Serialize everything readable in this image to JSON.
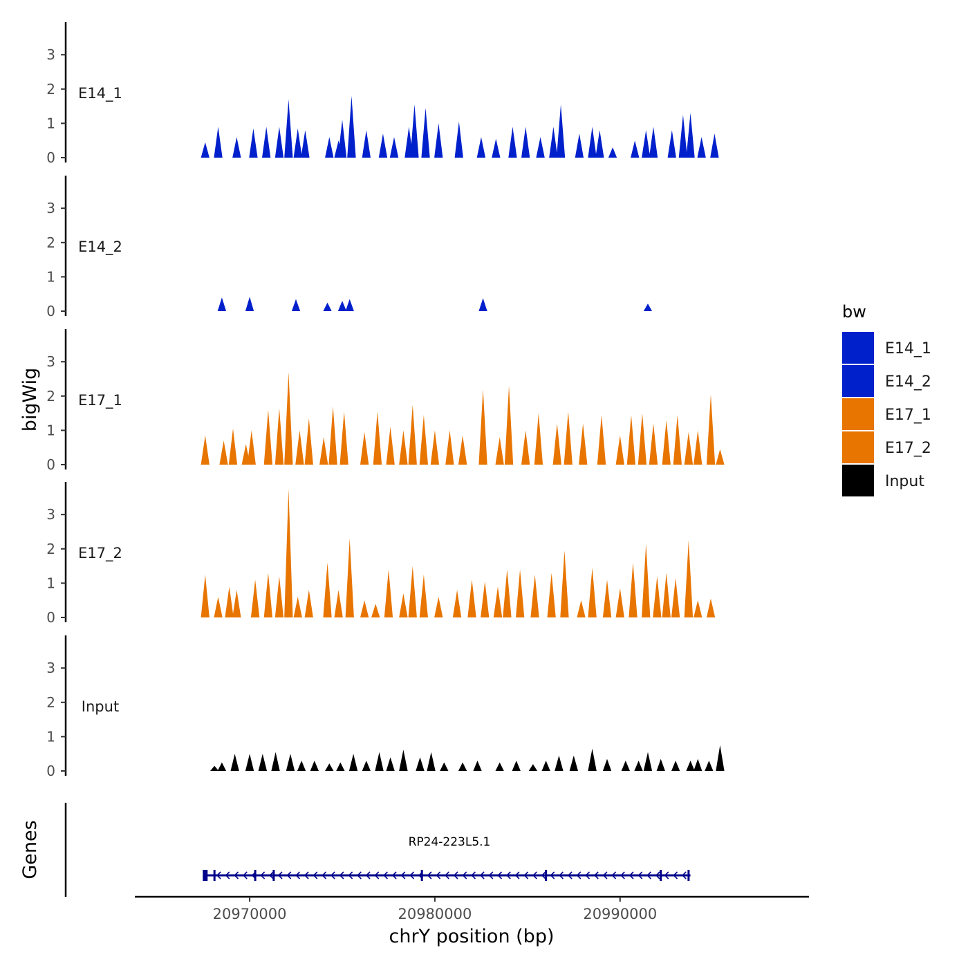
{
  "chart_data": {
    "type": "area",
    "subtype": "genome-browser-coverage-tracks",
    "ylabel": "bigWig",
    "xlabel": "chrY position (bp)",
    "xlim": [
      20963800,
      21000200
    ],
    "x_ticks": [
      20970000,
      20980000,
      20990000
    ],
    "x_tick_labels": [
      "20970000",
      "20980000",
      "20990000"
    ],
    "ylim": [
      0,
      4
    ],
    "y_ticks": [
      0,
      1,
      2,
      3
    ],
    "y_tick_labels": [
      "0",
      "1",
      "2",
      "3"
    ],
    "grid": false,
    "legend": {
      "title": "bw",
      "position": "right",
      "entries": [
        {
          "label": "E14_1",
          "color": "#0020CC"
        },
        {
          "label": "E14_2",
          "color": "#0020CC"
        },
        {
          "label": "E17_1",
          "color": "#E87500"
        },
        {
          "label": "E17_2",
          "color": "#E87500"
        },
        {
          "label": "Input",
          "color": "#000000"
        }
      ]
    },
    "tracks": [
      {
        "name": "E14_1",
        "color": "#0020CC",
        "x_start": 20967500,
        "x_end": 20995600,
        "peaks": [
          [
            20967600,
            0.45
          ],
          [
            20968300,
            0.9
          ],
          [
            20969300,
            0.6
          ],
          [
            20970200,
            0.85
          ],
          [
            20970900,
            0.9
          ],
          [
            20971600,
            0.9
          ],
          [
            20972100,
            1.7
          ],
          [
            20972600,
            0.85
          ],
          [
            20973000,
            0.8
          ],
          [
            20974300,
            0.6
          ],
          [
            20974800,
            0.5
          ],
          [
            20975000,
            1.1
          ],
          [
            20975500,
            1.8
          ],
          [
            20976300,
            0.8
          ],
          [
            20977200,
            0.7
          ],
          [
            20977800,
            0.6
          ],
          [
            20978600,
            0.9
          ],
          [
            20978900,
            1.55
          ],
          [
            20979500,
            1.45
          ],
          [
            20980200,
            1.0
          ],
          [
            20981300,
            1.05
          ],
          [
            20982500,
            0.6
          ],
          [
            20983300,
            0.55
          ],
          [
            20984200,
            0.9
          ],
          [
            20984900,
            0.9
          ],
          [
            20985700,
            0.6
          ],
          [
            20986400,
            0.9
          ],
          [
            20986800,
            1.55
          ],
          [
            20987800,
            0.7
          ],
          [
            20988500,
            0.9
          ],
          [
            20988900,
            0.8
          ],
          [
            20989600,
            0.3
          ],
          [
            20990800,
            0.5
          ],
          [
            20991400,
            0.8
          ],
          [
            20991800,
            0.9
          ],
          [
            20992800,
            0.8
          ],
          [
            20993400,
            1.25
          ],
          [
            20993800,
            1.3
          ],
          [
            20994400,
            0.6
          ],
          [
            20995100,
            0.7
          ]
        ]
      },
      {
        "name": "E14_2",
        "color": "#0020CC",
        "x_start": 20968400,
        "x_end": 20991600,
        "peaks": [
          [
            20968500,
            0.4
          ],
          [
            20970000,
            0.42
          ],
          [
            20972500,
            0.35
          ],
          [
            20974200,
            0.25
          ],
          [
            20975000,
            0.3
          ],
          [
            20975400,
            0.35
          ],
          [
            20982600,
            0.38
          ],
          [
            20991500,
            0.22
          ]
        ]
      },
      {
        "name": "E17_1",
        "color": "#E87500",
        "x_start": 20967500,
        "x_end": 20995600,
        "peaks": [
          [
            20967600,
            0.85
          ],
          [
            20968600,
            0.7
          ],
          [
            20969100,
            1.05
          ],
          [
            20969800,
            0.6
          ],
          [
            20970100,
            1.0
          ],
          [
            20971000,
            1.6
          ],
          [
            20971600,
            1.65
          ],
          [
            20972100,
            2.7
          ],
          [
            20972700,
            1.0
          ],
          [
            20973200,
            1.35
          ],
          [
            20974000,
            0.8
          ],
          [
            20974500,
            1.7
          ],
          [
            20975100,
            1.55
          ],
          [
            20976200,
            0.95
          ],
          [
            20976900,
            1.55
          ],
          [
            20977600,
            1.1
          ],
          [
            20978300,
            1.0
          ],
          [
            20978800,
            1.75
          ],
          [
            20979400,
            1.45
          ],
          [
            20980000,
            1.0
          ],
          [
            20980800,
            1.0
          ],
          [
            20981500,
            0.85
          ],
          [
            20982600,
            2.2
          ],
          [
            20983500,
            0.8
          ],
          [
            20984000,
            2.3
          ],
          [
            20984900,
            1.0
          ],
          [
            20985600,
            1.5
          ],
          [
            20986600,
            1.2
          ],
          [
            20987200,
            1.55
          ],
          [
            20988000,
            1.2
          ],
          [
            20989000,
            1.45
          ],
          [
            20990000,
            0.85
          ],
          [
            20990600,
            1.45
          ],
          [
            20991200,
            1.5
          ],
          [
            20991800,
            1.2
          ],
          [
            20992500,
            1.3
          ],
          [
            20993100,
            1.45
          ],
          [
            20993700,
            0.95
          ],
          [
            20994200,
            1.0
          ],
          [
            20994900,
            2.05
          ],
          [
            20995400,
            0.45
          ]
        ]
      },
      {
        "name": "E17_2",
        "color": "#E87500",
        "x_start": 20967500,
        "x_end": 20995600,
        "peaks": [
          [
            20967600,
            1.25
          ],
          [
            20968300,
            0.6
          ],
          [
            20968900,
            0.9
          ],
          [
            20969300,
            0.8
          ],
          [
            20970300,
            1.1
          ],
          [
            20971000,
            1.3
          ],
          [
            20971600,
            1.2
          ],
          [
            20972100,
            3.75
          ],
          [
            20972600,
            0.6
          ],
          [
            20973200,
            0.8
          ],
          [
            20974200,
            1.6
          ],
          [
            20974800,
            0.8
          ],
          [
            20975400,
            2.3
          ],
          [
            20976200,
            0.5
          ],
          [
            20976800,
            0.4
          ],
          [
            20977500,
            1.4
          ],
          [
            20978300,
            0.7
          ],
          [
            20978800,
            1.5
          ],
          [
            20979400,
            1.25
          ],
          [
            20980200,
            0.6
          ],
          [
            20981200,
            0.8
          ],
          [
            20982000,
            1.1
          ],
          [
            20982700,
            1.05
          ],
          [
            20983400,
            0.9
          ],
          [
            20983900,
            1.4
          ],
          [
            20984600,
            1.4
          ],
          [
            20985400,
            1.25
          ],
          [
            20986300,
            1.3
          ],
          [
            20987000,
            1.95
          ],
          [
            20987900,
            0.5
          ],
          [
            20988500,
            1.45
          ],
          [
            20989300,
            1.1
          ],
          [
            20990000,
            0.85
          ],
          [
            20990700,
            1.6
          ],
          [
            20991400,
            2.15
          ],
          [
            20992000,
            1.2
          ],
          [
            20992500,
            1.3
          ],
          [
            20993000,
            1.15
          ],
          [
            20993700,
            2.25
          ],
          [
            20994200,
            0.5
          ],
          [
            20994900,
            0.55
          ]
        ]
      },
      {
        "name": "Input",
        "color": "#000000",
        "x_start": 20968000,
        "x_end": 20995600,
        "peaks": [
          [
            20968100,
            0.15
          ],
          [
            20968500,
            0.25
          ],
          [
            20969200,
            0.5
          ],
          [
            20970000,
            0.5
          ],
          [
            20970700,
            0.5
          ],
          [
            20971400,
            0.55
          ],
          [
            20972200,
            0.5
          ],
          [
            20972800,
            0.3
          ],
          [
            20973500,
            0.3
          ],
          [
            20974300,
            0.22
          ],
          [
            20974900,
            0.25
          ],
          [
            20975600,
            0.5
          ],
          [
            20976300,
            0.3
          ],
          [
            20977000,
            0.55
          ],
          [
            20977600,
            0.4
          ],
          [
            20978300,
            0.62
          ],
          [
            20979200,
            0.4
          ],
          [
            20979800,
            0.55
          ],
          [
            20980500,
            0.25
          ],
          [
            20981500,
            0.25
          ],
          [
            20982300,
            0.3
          ],
          [
            20983500,
            0.25
          ],
          [
            20984400,
            0.3
          ],
          [
            20985300,
            0.2
          ],
          [
            20986000,
            0.3
          ],
          [
            20986700,
            0.45
          ],
          [
            20987500,
            0.45
          ],
          [
            20988500,
            0.65
          ],
          [
            20989300,
            0.35
          ],
          [
            20990300,
            0.3
          ],
          [
            20991000,
            0.3
          ],
          [
            20991500,
            0.55
          ],
          [
            20992200,
            0.35
          ],
          [
            20993000,
            0.3
          ],
          [
            20993800,
            0.3
          ],
          [
            20994200,
            0.35
          ],
          [
            20994800,
            0.3
          ],
          [
            20995400,
            0.75
          ]
        ]
      }
    ],
    "genes_track": {
      "label": "Genes",
      "gene_name": "RP24-223L5.1",
      "start": 20967500,
      "end": 20993800,
      "strand": "-",
      "exons": [
        20967600,
        20968100,
        20970300,
        20971300,
        20979300,
        20986000,
        20992200,
        20993700
      ],
      "color": "#00008B"
    }
  }
}
